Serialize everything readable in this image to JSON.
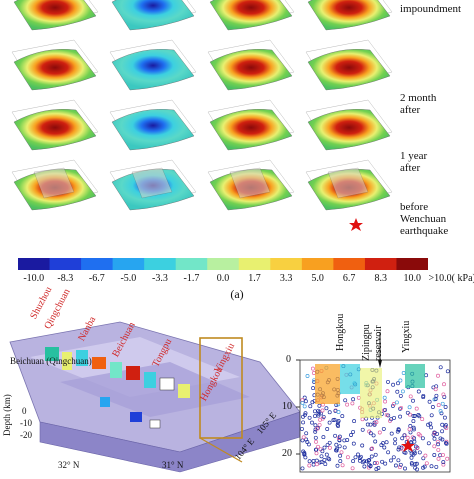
{
  "row_labels": {
    "r1": "impoundment",
    "r2_line1": "2 month",
    "r2_line2": "after",
    "r3_line1": "1 year",
    "r3_line2": "after",
    "r4_line1": "before",
    "r4_line2": "Wenchuan",
    "r4_line3": "earthquake"
  },
  "colorbar": {
    "ticks": [
      "-10.0",
      "-8.3",
      "-6.7",
      "-5.0",
      "-3.3",
      "-1.7",
      "0.0",
      "1.7",
      "3.3",
      "5.0",
      "6.7",
      "8.3",
      "10.0"
    ],
    "last_label": ">10.0( kPa)",
    "colors": [
      "#1a1aa0",
      "#1f3fd8",
      "#1f6ff0",
      "#27a5f0",
      "#3cd0e0",
      "#72e6c8",
      "#b8f0a0",
      "#e8f070",
      "#f8d040",
      "#f8a020",
      "#f06010",
      "#d02010",
      "#8a0a0a"
    ]
  },
  "panel_label": "(a)",
  "map": {
    "place_labels_red": [
      "Shuzhou",
      "Qingchuan",
      "Nanba",
      "Beichuan",
      "Tongpu",
      "Hongkou",
      "Yingxiu"
    ],
    "fault_label": "Beichuan (Qingchuan)",
    "depth_label": "Depth (km)",
    "depth_ticks": [
      "0",
      "-10",
      "-20"
    ],
    "lat_labels": [
      "32° N",
      "31° N"
    ],
    "lon_labels": [
      "104° E",
      "105° E"
    ]
  },
  "section": {
    "top_labels": [
      "Hongkou",
      "Zipingpu",
      "reservoir",
      "Yingxiu"
    ],
    "y_ticks": [
      "0",
      "10",
      "20"
    ]
  }
}
